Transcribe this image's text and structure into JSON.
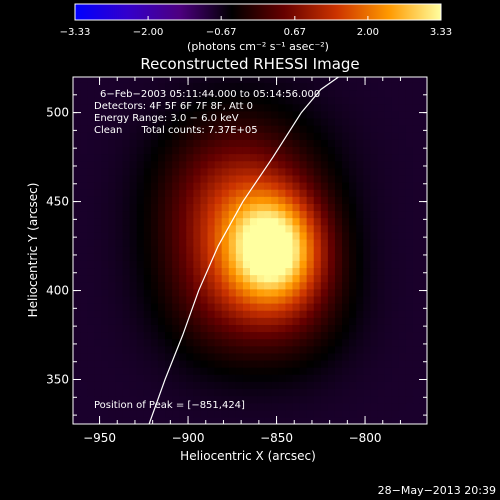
{
  "chart_data": {
    "type": "heatmap",
    "title": "Reconstructed RHESSI Image",
    "colorbar": {
      "ticks": [
        "-3.33",
        "-2.00",
        "-0.67",
        "0.67",
        "2.00",
        "3.33"
      ],
      "range": [
        -3.33,
        3.33
      ],
      "unit_label": "(photons cm⁻² s⁻¹ asec⁻²)",
      "colormap": [
        "#0000ff",
        "#3300cc",
        "#4d0080",
        "#000000",
        "#660000",
        "#cc3300",
        "#ff9900",
        "#ffffa0"
      ]
    },
    "xlabel": "Heliocentric X (arcsec)",
    "ylabel": "Heliocentric Y (arcsec)",
    "xlim": [
      -965,
      -765
    ],
    "ylim": [
      325,
      520
    ],
    "x_ticks": [
      -950,
      -900,
      -850,
      -800
    ],
    "x_tick_labels": [
      "−950",
      "−900",
      "−850",
      "−800"
    ],
    "y_ticks": [
      350,
      400,
      450,
      500
    ],
    "y_tick_labels": [
      "350",
      "400",
      "450",
      "500"
    ],
    "annotations": [
      "6−Feb−2003 05:11:44.000 to 05:14:56.000",
      "Detectors: 4F 5F 6F 7F 8F, Att 0",
      "Energy Range: 3.0 − 6.0 keV",
      "Clean      Total counts: 7.37E+05"
    ],
    "peak_label": "Position of Peak = [−851,424]",
    "peak": [
      -851,
      424
    ],
    "limb_curve": [
      [
        -922,
        325
      ],
      [
        -913,
        350
      ],
      [
        -903,
        375
      ],
      [
        -894,
        400
      ],
      [
        -883,
        425
      ],
      [
        -869,
        450
      ],
      [
        -852,
        475
      ],
      [
        -836,
        500
      ],
      [
        -825,
        513
      ],
      [
        -815,
        520
      ]
    ],
    "sources": [
      {
        "x": -851,
        "y": 424,
        "sx": 26,
        "sy": 30,
        "amp": 3.3
      },
      {
        "x": -880,
        "y": 440,
        "sx": 36,
        "sy": 48,
        "amp": 1.2
      },
      {
        "x": -862,
        "y": 455,
        "sx": 42,
        "sy": 44,
        "amp": 0.9
      },
      {
        "x": -875,
        "y": 395,
        "sx": 36,
        "sy": 36,
        "amp": 0.8
      },
      {
        "x": -840,
        "y": 395,
        "sx": 32,
        "sy": 36,
        "amp": 0.7
      }
    ],
    "background": -0.8,
    "grid": false
  },
  "footer_timestamp": "28−May−2013 20:39"
}
